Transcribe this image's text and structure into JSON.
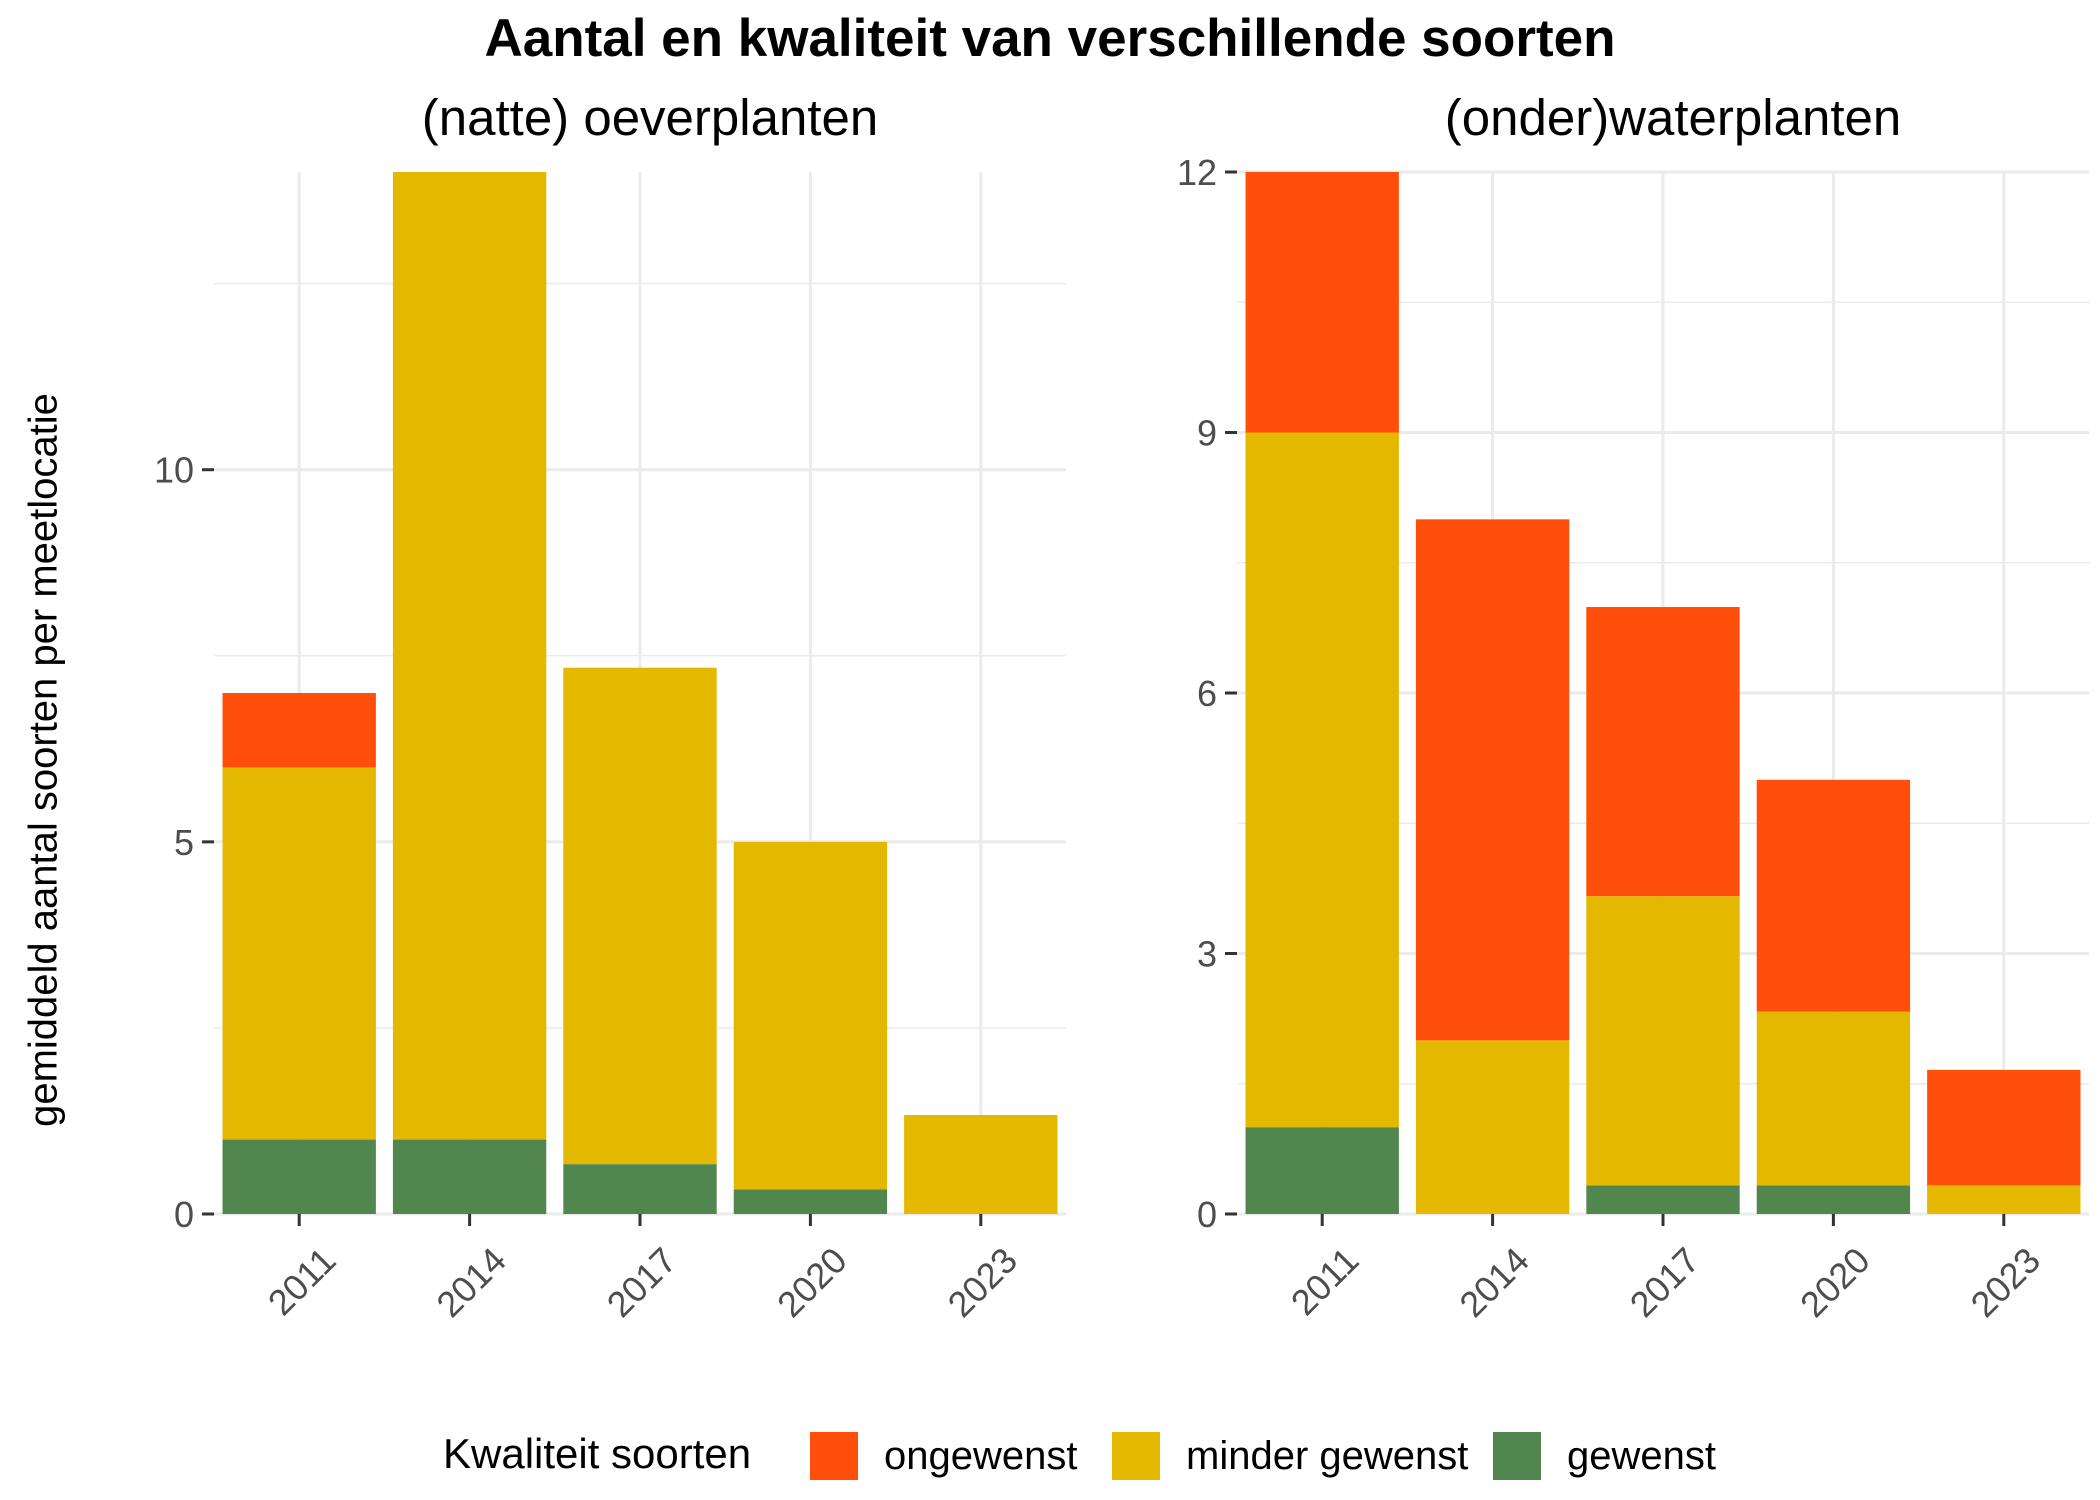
{
  "title": "Aantal en kwaliteit van verschillende soorten",
  "ylabel": "gemiddeld aantal soorten per meetlocatie",
  "legend": {
    "title": "Kwaliteit soorten",
    "items": [
      {
        "label": "ongewenst",
        "color": "#FF4F0A"
      },
      {
        "label": "minder gewenst",
        "color": "#E5B800"
      },
      {
        "label": "gewenst",
        "color": "#52864F"
      }
    ]
  },
  "chart_data": [
    {
      "type": "bar",
      "stacked": true,
      "title": "(natte) oeverplanten",
      "categories": [
        "2011",
        "2014",
        "2017",
        "2020",
        "2023"
      ],
      "ylim": [
        0,
        14
      ],
      "yticks": [
        0,
        5,
        10
      ],
      "grid": true,
      "legend_position": "bottom",
      "series": [
        {
          "name": "gewenst",
          "color": "#52864F",
          "values": [
            1,
            1,
            0.67,
            0.33,
            0
          ]
        },
        {
          "name": "minder gewenst",
          "color": "#E5B800",
          "values": [
            5,
            13,
            6.67,
            4.67,
            1.33
          ]
        },
        {
          "name": "ongewenst",
          "color": "#FF4F0A",
          "values": [
            1,
            0,
            0,
            0,
            0
          ]
        }
      ]
    },
    {
      "type": "bar",
      "stacked": true,
      "title": "(onder)waterplanten",
      "categories": [
        "2011",
        "2014",
        "2017",
        "2020",
        "2023"
      ],
      "ylim": [
        0,
        12
      ],
      "yticks": [
        0,
        3,
        6,
        9,
        12
      ],
      "grid": true,
      "legend_position": "bottom",
      "series": [
        {
          "name": "gewenst",
          "color": "#52864F",
          "values": [
            1,
            0,
            0.33,
            0.33,
            0
          ]
        },
        {
          "name": "minder gewenst",
          "color": "#E5B800",
          "values": [
            8,
            2,
            3.33,
            2,
            0.33
          ]
        },
        {
          "name": "ongewenst",
          "color": "#FF4F0A",
          "values": [
            3,
            6,
            3.33,
            2.67,
            1.33
          ]
        }
      ]
    }
  ]
}
